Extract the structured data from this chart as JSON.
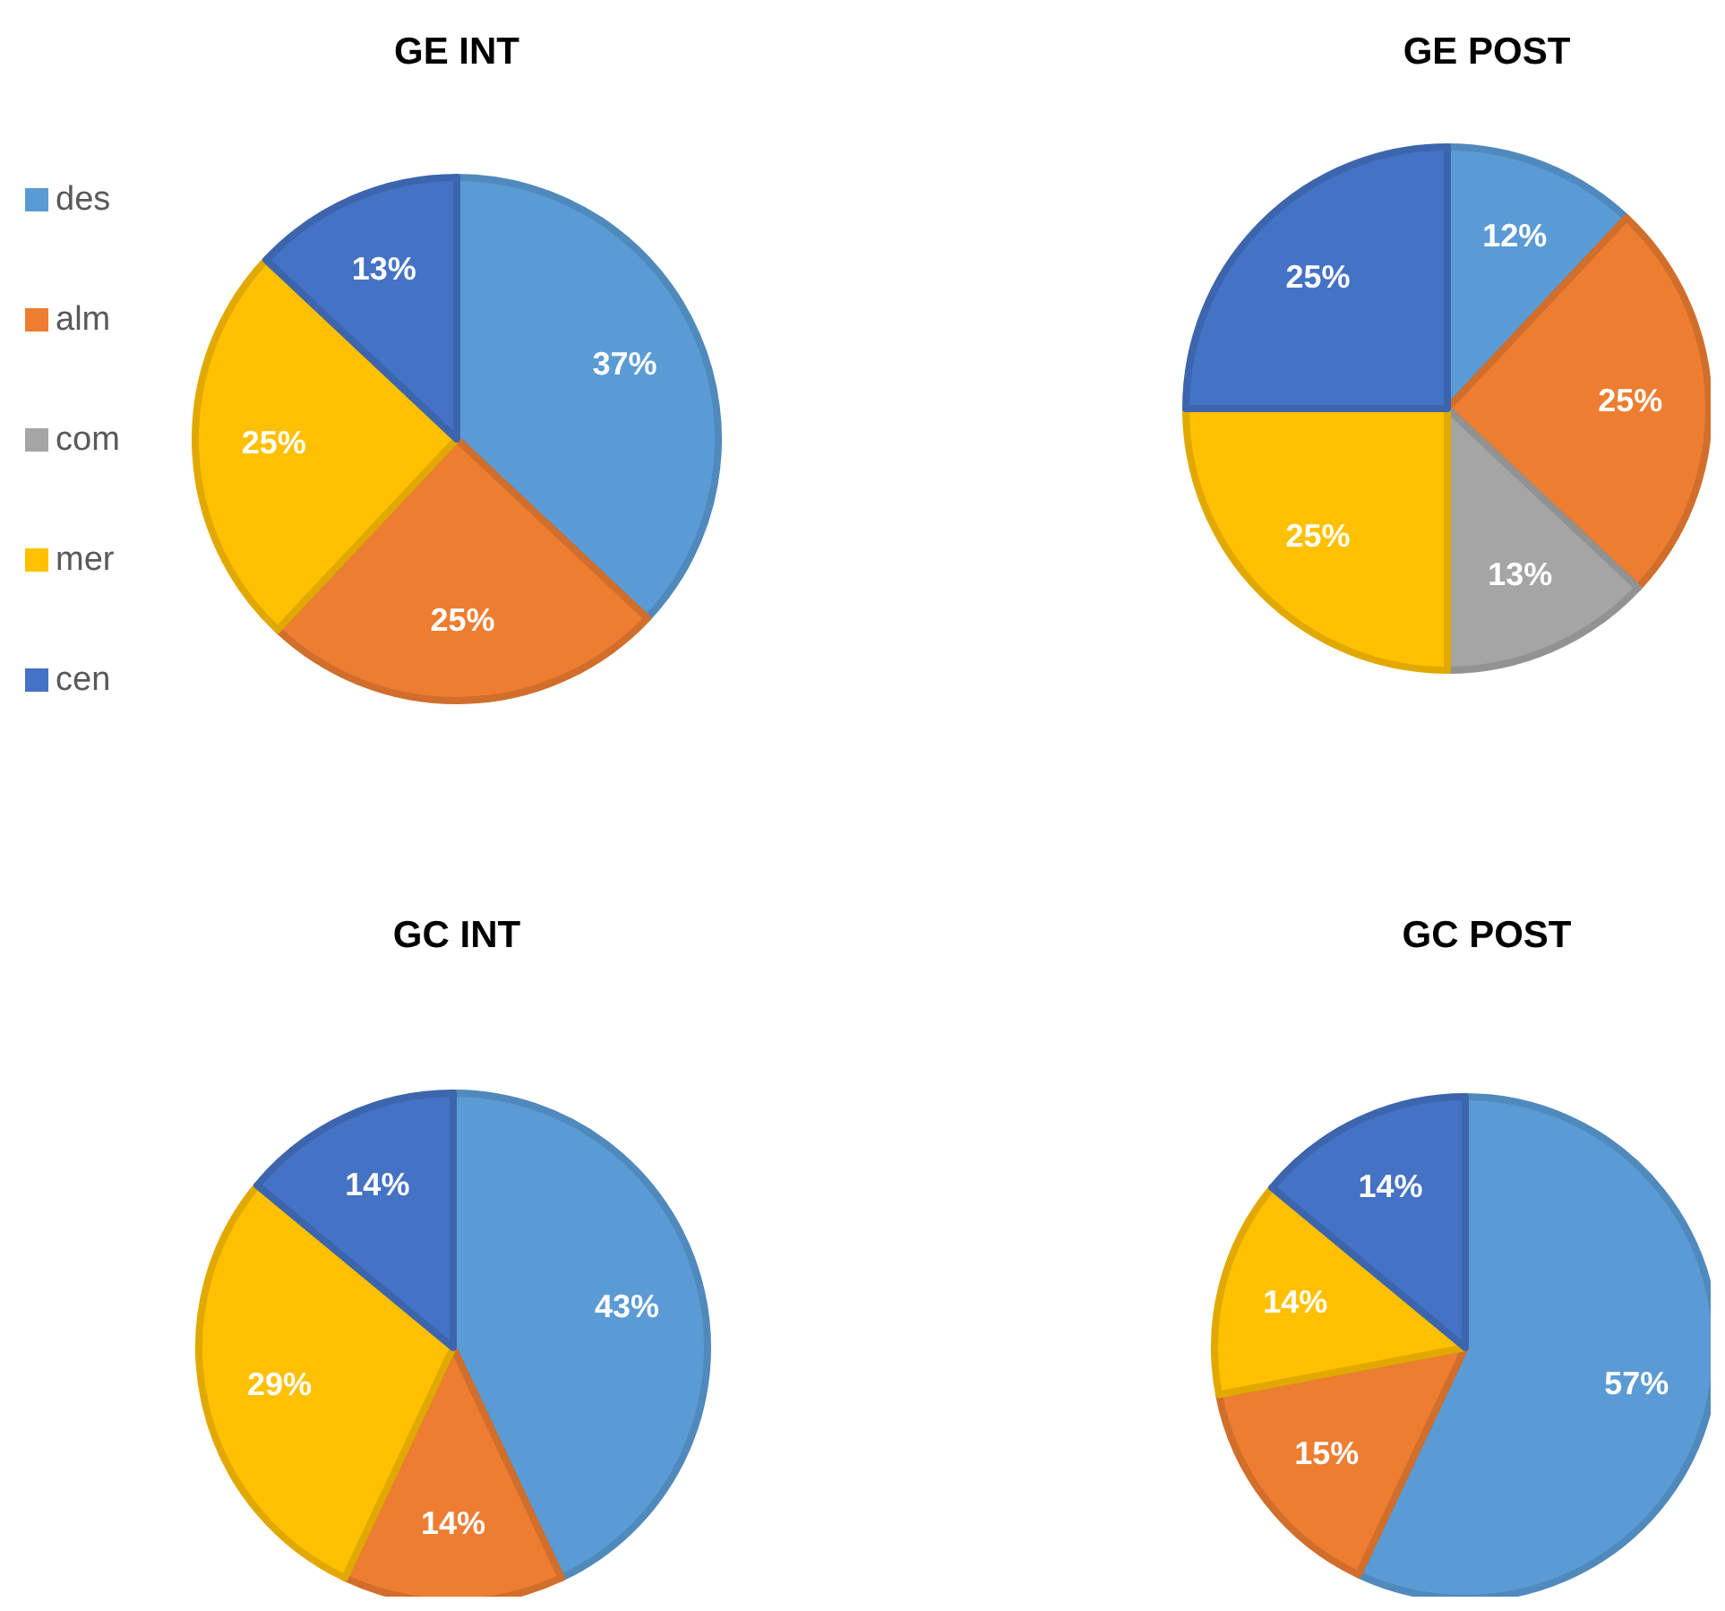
{
  "chart_data": [
    {
      "type": "pie",
      "title": "GE INT",
      "categories": [
        "des",
        "alm",
        "com",
        "mer",
        "cen"
      ],
      "values": [
        37,
        25,
        0,
        25,
        13
      ],
      "value_labels": [
        "37%",
        "25%",
        null,
        "25%",
        "13%"
      ],
      "colors": [
        "#5b9bd5",
        "#ed7d31",
        "#a5a5a5",
        "#ffc000",
        "#4472c4"
      ],
      "legend": "left"
    },
    {
      "type": "pie",
      "title": "GE POST",
      "categories": [
        null,
        null,
        null,
        null,
        null
      ],
      "values": [
        12,
        25,
        13,
        25,
        25
      ],
      "value_labels": [
        "12%",
        "25%",
        "13%",
        "25%",
        "25%"
      ],
      "colors": [
        "#5b9bd5",
        "#ed7d31",
        "#a5a5a5",
        "#ffc000",
        "#4472c4"
      ]
    },
    {
      "type": "pie",
      "title": "GC INT",
      "categories": [
        null,
        null,
        null,
        null
      ],
      "values": [
        43,
        14,
        29,
        14
      ],
      "value_labels": [
        "43%",
        "14%",
        "29%",
        "14%"
      ],
      "colors": [
        "#5b9bd5",
        "#ed7d31",
        "#ffc000",
        "#4472c4"
      ]
    },
    {
      "type": "pie",
      "title": "GC POST",
      "categories": [
        null,
        null,
        null,
        null
      ],
      "values": [
        57,
        15,
        14,
        14
      ],
      "value_labels": [
        "57%",
        "15%",
        "14%",
        "14%"
      ],
      "colors": [
        "#5b9bd5",
        "#ed7d31",
        "#ffc000",
        "#4472c4"
      ]
    }
  ]
}
